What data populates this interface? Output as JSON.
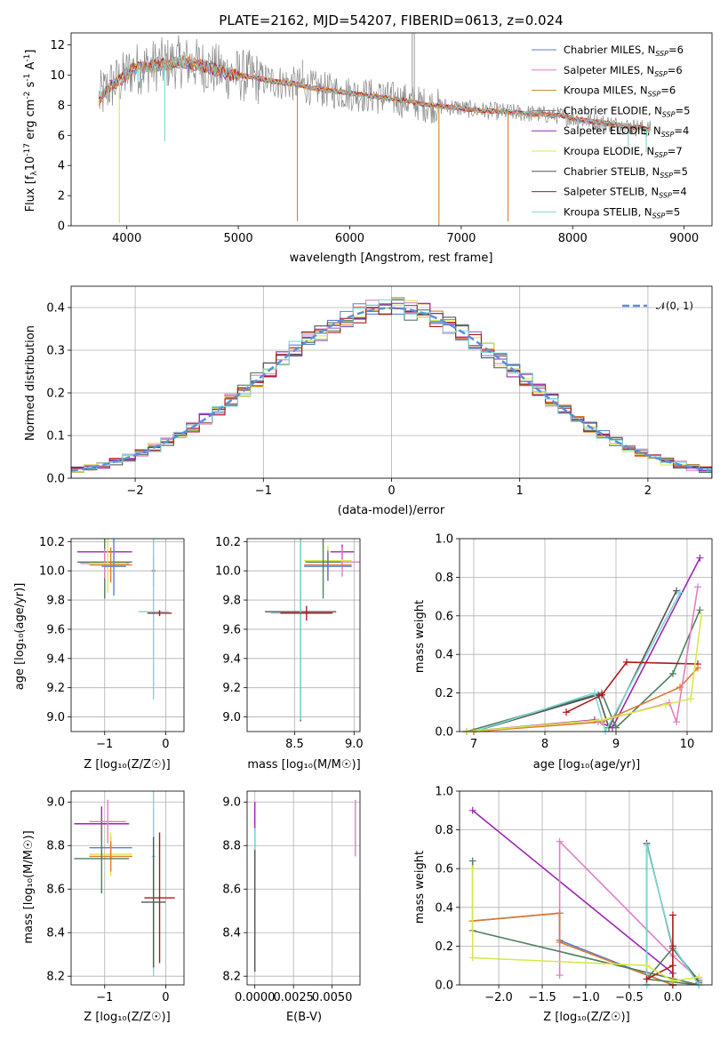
{
  "colors": {
    "chabrier_miles": "#5a7fd6",
    "salpeter_miles": "#e07fc0",
    "kroupa_miles": "#c08a2a",
    "chabrier_elodie": "#7f7f7f",
    "salpeter_elodie": "#9b27b0",
    "kroupa_elodie": "#d8e84a",
    "chabrier_stelib": "#555555",
    "salpeter_stelib": "#b01818",
    "kroupa_stelib": "#7dd6d6",
    "model_orange": "#e07a30",
    "green": "#4f7f5f",
    "gauss": "#5b8fdc"
  },
  "chart_data": [
    {
      "id": "spectrum",
      "type": "line",
      "title": "PLATE=2162, MJD=54207, FIBERID=0613, z=0.024",
      "xlabel": "wavelength [Angstrom, rest frame]",
      "ylabel_parts": [
        "Flux [f",
        "λ",
        "10",
        "-17",
        " erg cm",
        "-2",
        " s",
        "-1",
        " A",
        "-1",
        "]"
      ],
      "xlim": [
        3500,
        9250
      ],
      "ylim": [
        0,
        12.8
      ],
      "xticks": [
        "4000",
        "5000",
        "6000",
        "7000",
        "8000",
        "9000"
      ],
      "yticks": [
        "0",
        "2",
        "4",
        "6",
        "8",
        "10",
        "12"
      ],
      "legend_position": "upper right",
      "legend": [
        {
          "base": "Chabrier MILES, N",
          "sub": "SSP",
          "tail": "=6"
        },
        {
          "base": "Salpeter MILES, N",
          "sub": "SSP",
          "tail": "=6"
        },
        {
          "base": "Kroupa MILES, N",
          "sub": "SSP",
          "tail": "=6"
        },
        {
          "base": "Chabrier ELODIE, N",
          "sub": "SSP",
          "tail": "=5"
        },
        {
          "base": "Salpeter ELODIE, N",
          "sub": "SSP",
          "tail": "=4"
        },
        {
          "base": "Kroupa ELODIE, N",
          "sub": "SSP",
          "tail": "=7"
        },
        {
          "base": "Chabrier STELIB, N",
          "sub": "SSP",
          "tail": "=5"
        },
        {
          "base": "Salpeter STELIB, N",
          "sub": "SSP",
          "tail": "=4"
        },
        {
          "base": "Kroupa STELIB, N",
          "sub": "SSP",
          "tail": "=5"
        }
      ],
      "continuum": [
        [
          3750,
          8.4
        ],
        [
          3850,
          9.3
        ],
        [
          3950,
          9.7
        ],
        [
          4050,
          10.4
        ],
        [
          4150,
          10.5
        ],
        [
          4300,
          10.7
        ],
        [
          4500,
          10.9
        ],
        [
          4700,
          10.6
        ],
        [
          4900,
          10.1
        ],
        [
          5100,
          9.9
        ],
        [
          5300,
          9.6
        ],
        [
          5500,
          9.4
        ],
        [
          5700,
          9.1
        ],
        [
          5900,
          8.9
        ],
        [
          6100,
          8.7
        ],
        [
          6300,
          8.5
        ],
        [
          6500,
          8.3
        ],
        [
          6700,
          8.0
        ],
        [
          6900,
          7.9
        ],
        [
          7100,
          7.7
        ],
        [
          7300,
          7.6
        ],
        [
          7500,
          7.5
        ],
        [
          7700,
          7.4
        ],
        [
          7900,
          7.3
        ],
        [
          8100,
          7.0
        ],
        [
          8300,
          6.8
        ],
        [
          8500,
          6.6
        ],
        [
          8700,
          6.4
        ]
      ],
      "absorption_dips": [
        [
          3933,
          0.2
        ],
        [
          4101,
          9.4
        ],
        [
          4340,
          5.6
        ],
        [
          5530,
          0.3
        ],
        [
          6800,
          0.0
        ],
        [
          7420,
          0.3
        ],
        [
          8500,
          5.2
        ],
        [
          8660,
          4.9
        ]
      ],
      "sky_spikes": [
        [
          6560,
          12.8
        ],
        [
          6580,
          12.8
        ],
        [
          5577,
          11.0
        ],
        [
          6300,
          9.4
        ]
      ]
    },
    {
      "id": "residuals",
      "type": "histogram",
      "xlabel": "(data-model)/error",
      "ylabel": "Normed distribution",
      "xlim": [
        -2.5,
        2.5
      ],
      "ylim": [
        0,
        0.45
      ],
      "xticks": [
        "−2",
        "−1",
        "0",
        "1",
        "2"
      ],
      "yticks": [
        "0.0",
        "0.1",
        "0.2",
        "0.3",
        "0.4"
      ],
      "legend": "𝒩(0, 1)",
      "bins": 50
    },
    {
      "id": "age_vs_Z",
      "type": "scatter",
      "xlabel": "Z [log₁₀(Z/Z☉)]",
      "ylabel": "age  [log₁₀(age/yr)]",
      "xlim": [
        -1.55,
        0.3
      ],
      "ylim": [
        8.9,
        10.22
      ],
      "xticks": [
        "−1",
        "0"
      ],
      "yticks": [
        "9.0",
        "9.2",
        "9.4",
        "9.6",
        "9.8",
        "10.0",
        "10.2"
      ],
      "points": [
        {
          "x": -1.0,
          "y": 10.13,
          "xerr": 0.45,
          "yerr": 0.03,
          "c": "salpeter_elodie"
        },
        {
          "x": -1.0,
          "y": 10.06,
          "xerr": 0.45,
          "yerr": 0.25,
          "c": "green"
        },
        {
          "x": -1.0,
          "y": 10.05,
          "xerr": 0.4,
          "yerr": 0.1,
          "c": "salpeter_miles"
        },
        {
          "x": -0.95,
          "y": 10.05,
          "xerr": 0.3,
          "yerr": 0.2,
          "c": "kroupa_elodie"
        },
        {
          "x": -0.9,
          "y": 10.04,
          "xerr": 0.35,
          "yerr": 0.12,
          "c": "model_orange"
        },
        {
          "x": -0.85,
          "y": 10.03,
          "xerr": 0.2,
          "yerr": 0.2,
          "c": "chabrier_miles"
        },
        {
          "x": -0.2,
          "y": 10.0,
          "xerr": 0.03,
          "yerr": 0.1,
          "c": "chabrier_elodie"
        },
        {
          "x": -0.2,
          "y": 9.72,
          "xerr": 0.25,
          "yerr": 0.6,
          "c": "kroupa_stelib"
        },
        {
          "x": -0.1,
          "y": 9.71,
          "xerr": 0.2,
          "yerr": 0.02,
          "c": "salpeter_stelib"
        }
      ]
    },
    {
      "id": "age_vs_mass",
      "type": "scatter",
      "xlabel": "mass [log₁₀(M/M☉)]",
      "xlim": [
        8.1,
        9.05
      ],
      "ylim": [
        8.9,
        10.22
      ],
      "xticks": [
        "8.5",
        "9.0"
      ],
      "yticks": [
        "9.0",
        "9.2",
        "9.4",
        "9.6",
        "9.8",
        "10.0",
        "10.2"
      ],
      "points": [
        {
          "x": 8.9,
          "y": 10.13,
          "xerr": 0.1,
          "yerr": 0.05,
          "c": "salpeter_elodie"
        },
        {
          "x": 8.9,
          "y": 10.06,
          "xerr": 0.15,
          "yerr": 0.1,
          "c": "salpeter_miles"
        },
        {
          "x": 8.78,
          "y": 10.07,
          "xerr": 0.2,
          "yerr": 0.1,
          "c": "kroupa_elodie"
        },
        {
          "x": 8.78,
          "y": 10.04,
          "xerr": 0.2,
          "yerr": 0.1,
          "c": "model_orange"
        },
        {
          "x": 8.78,
          "y": 10.03,
          "xerr": 0.2,
          "yerr": 0.1,
          "c": "chabrier_miles"
        },
        {
          "x": 8.74,
          "y": 10.06,
          "xerr": 0.15,
          "yerr": 0.25,
          "c": "green"
        },
        {
          "x": 8.55,
          "y": 9.72,
          "xerr": 0.3,
          "yerr": 0.75,
          "c": "chabrier_stelib"
        },
        {
          "x": 8.55,
          "y": 9.71,
          "xerr": 0.25,
          "yerr": 0.73,
          "c": "kroupa_stelib"
        },
        {
          "x": 8.6,
          "y": 9.71,
          "xerr": 0.22,
          "yerr": 0.05,
          "c": "salpeter_stelib"
        }
      ]
    },
    {
      "id": "weight_vs_age",
      "type": "line",
      "xlabel": "age  [log₁₀(age/yr)]",
      "ylabel": "mass weight",
      "xlim": [
        6.8,
        10.35
      ],
      "ylim": [
        0,
        1.0
      ],
      "xticks": [
        "7",
        "8",
        "9",
        "10"
      ],
      "yticks": [
        "0.0",
        "0.2",
        "0.4",
        "0.6",
        "0.8",
        "1.0"
      ],
      "series": [
        {
          "c": "salpeter_elodie",
          "x": [
            6.9,
            8.7,
            8.95,
            10.18
          ],
          "y": [
            0.0,
            0.06,
            0.02,
            0.9
          ]
        },
        {
          "c": "green",
          "x": [
            6.9,
            8.8,
            9.0,
            9.8,
            10.18
          ],
          "y": [
            0.0,
            0.2,
            0.02,
            0.3,
            0.63
          ]
        },
        {
          "c": "chabrier_stelib",
          "x": [
            7.0,
            8.75,
            8.9,
            9.85
          ],
          "y": [
            0.0,
            0.19,
            0.02,
            0.73
          ]
        },
        {
          "c": "kroupa_stelib",
          "x": [
            7.0,
            8.7,
            8.85,
            9.9
          ],
          "y": [
            0.0,
            0.2,
            0.0,
            0.72
          ]
        },
        {
          "c": "salpeter_stelib",
          "x": [
            8.3,
            8.8,
            9.15,
            10.15
          ],
          "y": [
            0.1,
            0.19,
            0.36,
            0.35
          ]
        },
        {
          "c": "model_orange",
          "x": [
            7.0,
            8.8,
            9.9,
            10.15
          ],
          "y": [
            0.0,
            0.05,
            0.23,
            0.33
          ]
        },
        {
          "c": "salpeter_miles",
          "x": [
            8.75,
            9.75,
            9.85,
            10.15
          ],
          "y": [
            0.05,
            0.15,
            0.05,
            0.75
          ]
        },
        {
          "c": "kroupa_elodie",
          "x": [
            6.9,
            8.8,
            9.7,
            10.05,
            10.2
          ],
          "y": [
            0.0,
            0.06,
            0.14,
            0.17,
            0.6
          ]
        }
      ]
    },
    {
      "id": "mass_vs_Z",
      "type": "scatter",
      "xlabel": "Z [log₁₀(Z/Z☉)]",
      "ylabel": "mass [log₁₀(M/M☉)]",
      "xlim": [
        -1.55,
        0.3
      ],
      "ylim": [
        8.16,
        9.05
      ],
      "xticks": [
        "−1",
        "0"
      ],
      "yticks": [
        "8.2",
        "8.4",
        "8.6",
        "8.8",
        "9.0"
      ],
      "points": [
        {
          "x": -1.05,
          "y": 8.9,
          "xerr": 0.45,
          "yerr": 0.08,
          "c": "salpeter_elodie"
        },
        {
          "x": -0.95,
          "y": 8.91,
          "xerr": 0.3,
          "yerr": 0.1,
          "c": "salpeter_miles"
        },
        {
          "x": -0.9,
          "y": 8.79,
          "xerr": 0.35,
          "yerr": 0.05,
          "c": "chabrier_miles"
        },
        {
          "x": -0.9,
          "y": 8.76,
          "xerr": 0.35,
          "yerr": 0.1,
          "c": "kroupa_elodie"
        },
        {
          "x": -0.9,
          "y": 8.75,
          "xerr": 0.35,
          "yerr": 0.07,
          "c": "model_orange"
        },
        {
          "x": -1.05,
          "y": 8.74,
          "xerr": 0.45,
          "yerr": 0.16,
          "c": "green"
        },
        {
          "x": -0.2,
          "y": 8.75,
          "xerr": 0.03,
          "yerr": 0.55,
          "c": "kroupa_stelib"
        },
        {
          "x": -0.1,
          "y": 8.56,
          "xerr": 0.25,
          "yerr": 0.3,
          "c": "salpeter_stelib"
        },
        {
          "x": -0.2,
          "y": 8.54,
          "xerr": 0.2,
          "yerr": 0.3,
          "c": "chabrier_stelib"
        }
      ]
    },
    {
      "id": "mass_vs_ebv",
      "type": "scatter",
      "xlabel": "E(B-V)",
      "xlim": [
        -0.0005,
        0.0068
      ],
      "ylim": [
        8.16,
        9.05
      ],
      "xticks": [
        "0.0000",
        "0.0025",
        "0.0050"
      ],
      "yticks": [
        "8.2",
        "8.4",
        "8.6",
        "8.8",
        "9.0"
      ],
      "points": [
        {
          "x": 0.0,
          "y": 8.9,
          "yerr": 0.1,
          "c": "salpeter_elodie"
        },
        {
          "x": 0.0,
          "y": 8.76,
          "yerr": 0.12,
          "c": "salpeter_stelib"
        },
        {
          "x": 0.0,
          "y": 8.55,
          "yerr": 0.33,
          "c": "kroupa_stelib"
        },
        {
          "x": 0.0,
          "y": 8.5,
          "yerr": 0.28,
          "c": "chabrier_stelib"
        },
        {
          "x": 0.0065,
          "y": 8.88,
          "yerr": 0.13,
          "c": "salpeter_miles"
        }
      ]
    },
    {
      "id": "weight_vs_Z",
      "type": "line",
      "xlabel": "Z [log₁₀(Z/Z☉)]",
      "ylabel": "mass weight",
      "xlim": [
        -2.45,
        0.45
      ],
      "ylim": [
        0,
        1.0
      ],
      "xticks": [
        "−2.0",
        "−1.5",
        "−1.0",
        "−0.5",
        "0.0"
      ],
      "yticks": [
        "0.0",
        "0.2",
        "0.4",
        "0.6",
        "0.8",
        "1.0"
      ],
      "series": [
        {
          "c": "salpeter_elodie",
          "x": [
            -2.3,
            0.0,
            0.0
          ],
          "y": [
            0.9,
            0.06,
            0.0
          ]
        },
        {
          "c": "salpeter_miles",
          "x": [
            -1.3,
            -1.3,
            0.0,
            0.3
          ],
          "y": [
            0.05,
            0.74,
            0.15,
            0.03
          ]
        },
        {
          "c": "chabrier_miles",
          "x": [
            -2.3,
            -1.3,
            -1.3,
            0.0
          ],
          "y": [
            0.33,
            0.37,
            0.23,
            0.0
          ]
        },
        {
          "c": "model_orange",
          "x": [
            -2.3,
            -1.3,
            -1.3,
            0.0
          ],
          "y": [
            0.33,
            0.37,
            0.22,
            0.0
          ]
        },
        {
          "c": "green",
          "x": [
            -2.3,
            -2.3,
            0.3,
            -0.3,
            0.0,
            0.3
          ],
          "y": [
            0.64,
            0.28,
            0.0,
            0.03,
            0.19,
            0.02
          ]
        },
        {
          "c": "chabrier_stelib",
          "x": [
            -0.3,
            -0.3,
            0.0,
            0.3
          ],
          "y": [
            0.0,
            0.73,
            0.19,
            0.01
          ]
        },
        {
          "c": "kroupa_stelib",
          "x": [
            -0.3,
            -0.3,
            0.0,
            0.3
          ],
          "y": [
            0.0,
            0.72,
            0.2,
            0.0
          ]
        },
        {
          "c": "salpeter_stelib",
          "x": [
            -0.3,
            0.0,
            0.0,
            0.0,
            0.0
          ],
          "y": [
            0.03,
            0.1,
            0.36,
            0.2,
            0.0
          ]
        },
        {
          "c": "kroupa_elodie",
          "x": [
            -2.3,
            -2.3,
            -0.3,
            0.0,
            0.3
          ],
          "y": [
            0.6,
            0.14,
            0.1,
            0.02,
            0.04
          ]
        }
      ]
    }
  ]
}
